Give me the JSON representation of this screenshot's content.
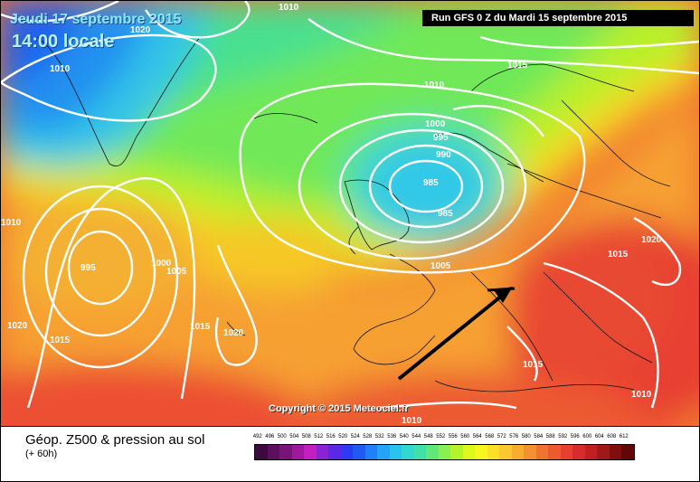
{
  "header": {
    "date": "Jeudi 17 septembre 2015",
    "time": "14:00 locale",
    "run": "Run GFS 0 Z du Mardi 15 septembre 2015"
  },
  "copyright": "Copyright © 2015 Meteociel.fr",
  "footer": {
    "title": "Géop. Z500 & pression au sol",
    "subtitle": "(+ 60h)"
  },
  "isobar_labels": [
    "1010",
    "1020",
    "1010",
    "1015",
    "1010",
    "1000",
    "995",
    "990",
    "985",
    "985",
    "1005",
    "1010",
    "995",
    "1000",
    "1005",
    "1020",
    "1015",
    "1015",
    "1020",
    "1020",
    "1015",
    "1015",
    "1010",
    "1010"
  ],
  "legend": {
    "values": [
      "492",
      "496",
      "500",
      "504",
      "508",
      "512",
      "516",
      "520",
      "524",
      "528",
      "532",
      "536",
      "540",
      "544",
      "548",
      "552",
      "556",
      "560",
      "564",
      "568",
      "572",
      "576",
      "580",
      "584",
      "588",
      "592",
      "596",
      "600",
      "604",
      "608",
      "612"
    ],
    "colors": [
      "#3d0a3d",
      "#5c0f5c",
      "#7a147a",
      "#a0189c",
      "#c41fc0",
      "#8a23d6",
      "#5a28e6",
      "#2d3cf0",
      "#1f5af5",
      "#1f80f7",
      "#24a4f7",
      "#28c4ef",
      "#30d8d0",
      "#40e0a8",
      "#60e878",
      "#88f050",
      "#b4f42c",
      "#dcf81c",
      "#f8f820",
      "#fce028",
      "#fcc830",
      "#f8ac30",
      "#f49030",
      "#f07430",
      "#ec5a30",
      "#e84030",
      "#d82c2c",
      "#c02020",
      "#a01818",
      "#801010",
      "#600808"
    ]
  }
}
